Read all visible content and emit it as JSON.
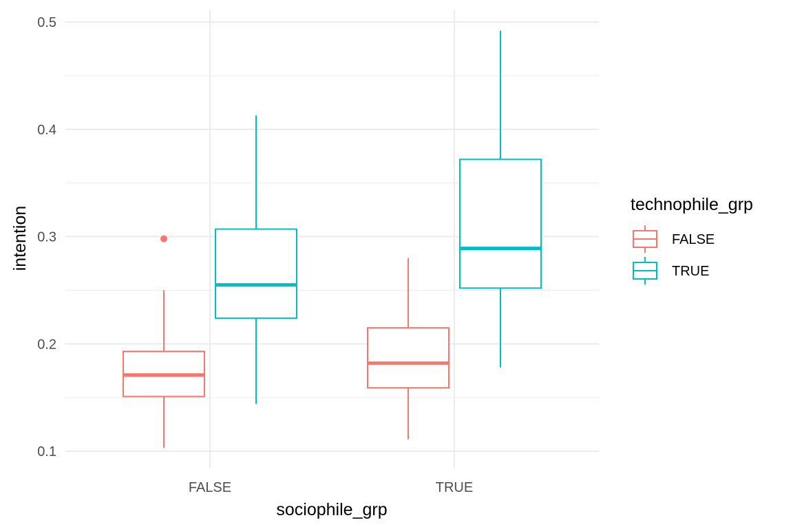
{
  "chart_data": {
    "type": "boxplot",
    "title": "",
    "xlabel": "sociophile_grp",
    "ylabel": "intention",
    "categories": [
      "FALSE",
      "TRUE"
    ],
    "ylim": [
      0.08,
      0.51
    ],
    "yticks": [
      0.1,
      0.2,
      0.3,
      0.4,
      0.5
    ],
    "ytick_labels": [
      "0.1",
      "0.2",
      "0.3",
      "0.4",
      "0.5"
    ],
    "grid": true,
    "legend": {
      "title": "technophile_grp",
      "placement": "right",
      "entries": [
        "FALSE",
        "TRUE"
      ]
    },
    "series": [
      {
        "name": "FALSE",
        "color": "#F8766D",
        "boxes": [
          {
            "category": "FALSE",
            "whisker_low": 0.103,
            "q1": 0.151,
            "median": 0.171,
            "q3": 0.193,
            "whisker_high": 0.25,
            "outliers": [
              0.298
            ]
          },
          {
            "category": "TRUE",
            "whisker_low": 0.111,
            "q1": 0.159,
            "median": 0.182,
            "q3": 0.215,
            "whisker_high": 0.28,
            "outliers": []
          }
        ]
      },
      {
        "name": "TRUE",
        "color": "#00BFC4",
        "boxes": [
          {
            "category": "FALSE",
            "whisker_low": 0.144,
            "q1": 0.224,
            "median": 0.255,
            "q3": 0.307,
            "whisker_high": 0.413,
            "outliers": []
          },
          {
            "category": "TRUE",
            "whisker_low": 0.178,
            "q1": 0.252,
            "median": 0.289,
            "q3": 0.372,
            "whisker_high": 0.492,
            "outliers": []
          }
        ]
      }
    ]
  }
}
